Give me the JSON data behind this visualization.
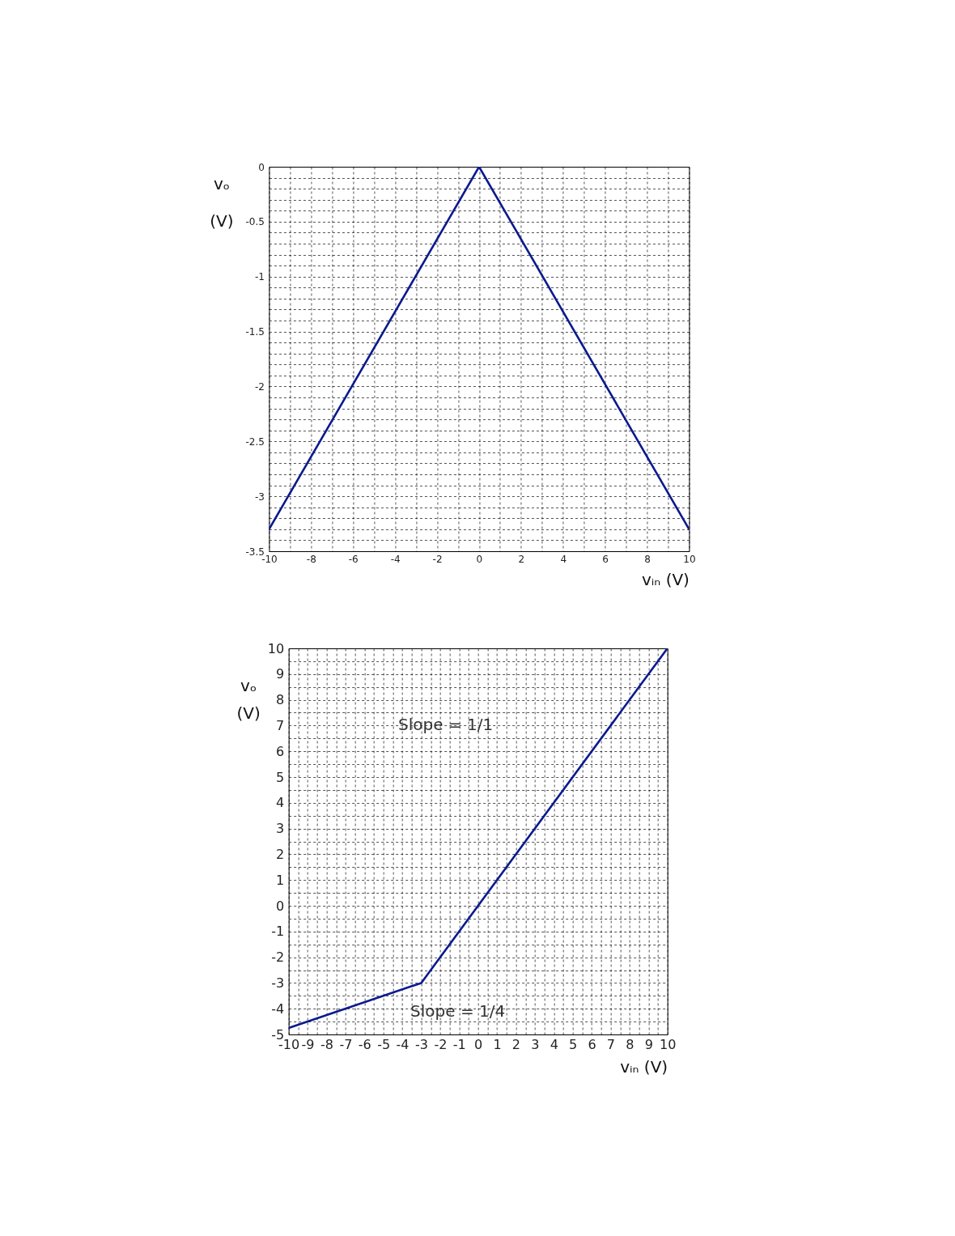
{
  "chart_data": [
    {
      "type": "line",
      "xlabel": "vᵢₙ (V)",
      "ylabel": "vₒ (V)",
      "x": [
        -10,
        0,
        10
      ],
      "series": [
        {
          "color": "#0b1a8f",
          "values": [
            -3.3,
            0,
            -3.3
          ]
        }
      ],
      "xlim": [
        -10,
        10
      ],
      "ylim": [
        -3.5,
        0
      ],
      "xticks": [
        -10,
        {
          "value": -9,
          "label": null
        },
        -8,
        {
          "value": -7,
          "label": null
        },
        -6,
        {
          "value": -5,
          "label": null
        },
        -4,
        {
          "value": -3,
          "label": null
        },
        -2,
        {
          "value": -1,
          "label": null
        },
        0,
        {
          "value": 1,
          "label": null
        },
        2,
        {
          "value": 3,
          "label": null
        },
        4,
        {
          "value": 5,
          "label": null
        },
        6,
        {
          "value": 7,
          "label": null
        },
        8,
        {
          "value": 9,
          "label": null
        },
        10
      ],
      "yticks": [
        0,
        {
          "value": -0.1,
          "label": null
        },
        {
          "value": -0.2,
          "label": null
        },
        {
          "value": -0.3,
          "label": null
        },
        {
          "value": -0.4,
          "label": null
        },
        -0.5,
        {
          "value": -0.6,
          "label": null
        },
        {
          "value": -0.7,
          "label": null
        },
        {
          "value": -0.8,
          "label": null
        },
        {
          "value": -0.9,
          "label": null
        },
        -1,
        {
          "value": -1.1,
          "label": null
        },
        {
          "value": -1.2,
          "label": null
        },
        {
          "value": -1.3,
          "label": null
        },
        {
          "value": -1.4,
          "label": null
        },
        -1.5,
        {
          "value": -1.6,
          "label": null
        },
        {
          "value": -1.7,
          "label": null
        },
        {
          "value": -1.8,
          "label": null
        },
        {
          "value": -1.9,
          "label": null
        },
        -2,
        {
          "value": -2.1,
          "label": null
        },
        {
          "value": -2.2,
          "label": null
        },
        {
          "value": -2.3,
          "label": null
        },
        {
          "value": -2.4,
          "label": null
        },
        -2.5,
        {
          "value": -2.6,
          "label": null
        },
        {
          "value": -2.7,
          "label": null
        },
        {
          "value": -2.8,
          "label": null
        },
        {
          "value": -2.9,
          "label": null
        },
        -3,
        {
          "value": -3.1,
          "label": null
        },
        {
          "value": -3.2,
          "label": null
        },
        {
          "value": -3.3,
          "label": null
        },
        {
          "value": -3.4,
          "label": null
        },
        -3.5
      ],
      "grid": true
    },
    {
      "type": "line",
      "xlabel": "vᵢₙ (V)",
      "ylabel": "vₒ (V)",
      "x": [
        -10,
        -3,
        10
      ],
      "series": [
        {
          "color": "#0b1a8f",
          "values": [
            -4.75,
            -3,
            10
          ]
        }
      ],
      "xlim": [
        -10,
        10
      ],
      "ylim": [
        -5,
        10
      ],
      "xticks": [
        -10,
        {
          "value": -9.5,
          "label": null
        },
        -9,
        {
          "value": -8.5,
          "label": null
        },
        -8,
        {
          "value": -7.5,
          "label": null
        },
        -7,
        {
          "value": -6.5,
          "label": null
        },
        -6,
        {
          "value": -5.5,
          "label": null
        },
        -5,
        {
          "value": -4.5,
          "label": null
        },
        -4,
        {
          "value": -3.5,
          "label": null
        },
        -3,
        {
          "value": -2.5,
          "label": null
        },
        -2,
        {
          "value": -1.5,
          "label": null
        },
        -1,
        {
          "value": -0.5,
          "label": null
        },
        0,
        {
          "value": 0.5,
          "label": null
        },
        1,
        {
          "value": 1.5,
          "label": null
        },
        2,
        {
          "value": 2.5,
          "label": null
        },
        3,
        {
          "value": 3.5,
          "label": null
        },
        4,
        {
          "value": 4.5,
          "label": null
        },
        5,
        {
          "value": 5.5,
          "label": null
        },
        6,
        {
          "value": 6.5,
          "label": null
        },
        7,
        {
          "value": 7.5,
          "label": null
        },
        8,
        {
          "value": 8.5,
          "label": null
        },
        9,
        {
          "value": 9.5,
          "label": null
        },
        10
      ],
      "yticks": [
        -5,
        {
          "value": -4.5,
          "label": null
        },
        -4,
        {
          "value": -3.5,
          "label": null
        },
        -3,
        {
          "value": -2.5,
          "label": null
        },
        -2,
        {
          "value": -1.5,
          "label": null
        },
        -1,
        {
          "value": -0.5,
          "label": null
        },
        0,
        {
          "value": 0.5,
          "label": null
        },
        1,
        {
          "value": 1.5,
          "label": null
        },
        2,
        {
          "value": 2.5,
          "label": null
        },
        3,
        {
          "value": 3.5,
          "label": null
        },
        4,
        {
          "value": 4.5,
          "label": null
        },
        5,
        {
          "value": 5.5,
          "label": null
        },
        6,
        {
          "value": 6.5,
          "label": null
        },
        7,
        {
          "value": 7.5,
          "label": null
        },
        8,
        {
          "value": 8.5,
          "label": null
        },
        9,
        {
          "value": 9.5,
          "label": null
        },
        10
      ],
      "grid": true,
      "annotations": [
        "Slope = 1/1",
        "Slope = 1/4"
      ]
    }
  ]
}
